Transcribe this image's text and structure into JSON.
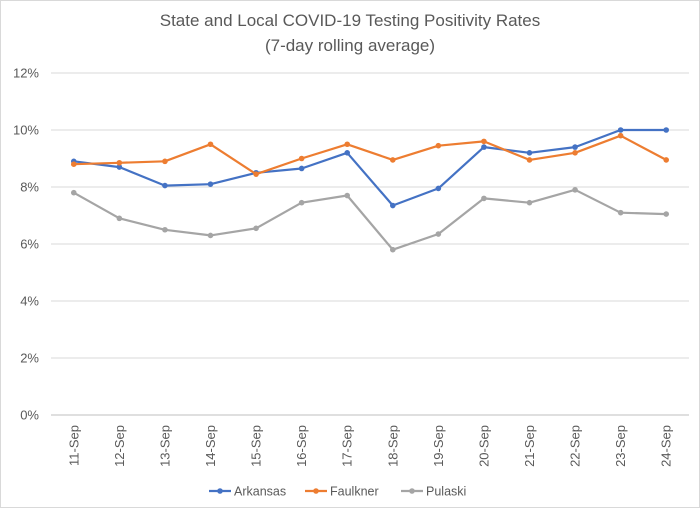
{
  "chart_data": {
    "type": "line",
    "title": "State and Local COVID-19 Testing Positivity Rates",
    "subtitle": "(7-day rolling average)",
    "xlabel": "",
    "ylabel": "",
    "ylim": [
      0,
      12
    ],
    "y_ticks": [
      "0%",
      "2%",
      "4%",
      "6%",
      "8%",
      "10%",
      "12%"
    ],
    "grid": true,
    "legend_position": "bottom",
    "categories": [
      "11-Sep",
      "12-Sep",
      "13-Sep",
      "14-Sep",
      "15-Sep",
      "16-Sep",
      "17-Sep",
      "18-Sep",
      "19-Sep",
      "20-Sep",
      "21-Sep",
      "22-Sep",
      "23-Sep",
      "24-Sep"
    ],
    "series": [
      {
        "name": "Arkansas",
        "color": "#4472c4",
        "values": [
          8.9,
          8.7,
          8.05,
          8.1,
          8.5,
          8.65,
          9.2,
          7.35,
          7.95,
          9.4,
          9.2,
          9.4,
          10.0,
          10.0
        ]
      },
      {
        "name": "Faulkner",
        "color": "#ed7d31",
        "values": [
          8.8,
          8.85,
          8.9,
          9.5,
          8.45,
          9.0,
          9.5,
          8.95,
          9.45,
          9.6,
          8.95,
          9.2,
          9.8,
          8.95
        ]
      },
      {
        "name": "Pulaski",
        "color": "#a5a5a5",
        "values": [
          7.8,
          6.9,
          6.5,
          6.3,
          6.55,
          7.45,
          7.7,
          5.8,
          6.35,
          7.6,
          7.45,
          7.9,
          7.1,
          7.05
        ]
      }
    ]
  }
}
